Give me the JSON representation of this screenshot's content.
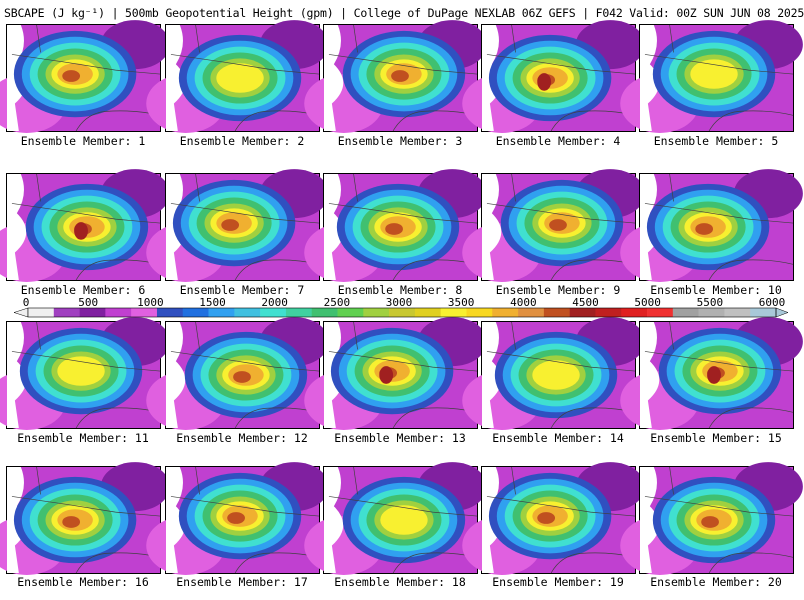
{
  "header": {
    "title": "SBCAPE (J kg⁻¹) | 500mb Geopotential Height (gpm) | College of DuPage NEXLAB 06Z GEFS | F042 Valid: 00Z SUN JUN 08 2025"
  },
  "colorbar": {
    "ticks": [
      "0",
      "500",
      "1000",
      "1500",
      "2000",
      "2500",
      "3000",
      "3500",
      "4000",
      "4500",
      "5000",
      "5500",
      "6000"
    ],
    "colors": [
      "#f0f0f0",
      "#a040c0",
      "#8020a0",
      "#c040d0",
      "#e060e0",
      "#3050c0",
      "#2070e0",
      "#30a0f0",
      "#40c0e0",
      "#40e0d0",
      "#40d0a0",
      "#40c070",
      "#60d050",
      "#a0d040",
      "#c8c830",
      "#e0d020",
      "#f8f030",
      "#f8d820",
      "#f0b030",
      "#e09040",
      "#c05020",
      "#a02020",
      "#c02020",
      "#e02020",
      "#f03030",
      "#a0a0a0",
      "#b0b0b0",
      "#c0c0c0",
      "#a8c8d8"
    ]
  },
  "members": [
    {
      "label": "Ensemble Member: 1",
      "intensity": 2
    },
    {
      "label": "Ensemble Member: 2",
      "intensity": 1
    },
    {
      "label": "Ensemble Member: 3",
      "intensity": 2
    },
    {
      "label": "Ensemble Member: 4",
      "intensity": 3
    },
    {
      "label": "Ensemble Member: 5",
      "intensity": 1
    },
    {
      "label": "Ensemble Member: 6",
      "intensity": 3
    },
    {
      "label": "Ensemble Member: 7",
      "intensity": 2
    },
    {
      "label": "Ensemble Member: 8",
      "intensity": 2
    },
    {
      "label": "Ensemble Member: 9",
      "intensity": 2
    },
    {
      "label": "Ensemble Member: 10",
      "intensity": 2
    },
    {
      "label": "Ensemble Member: 11",
      "intensity": 1
    },
    {
      "label": "Ensemble Member: 12",
      "intensity": 2
    },
    {
      "label": "Ensemble Member: 13",
      "intensity": 3
    },
    {
      "label": "Ensemble Member: 14",
      "intensity": 1
    },
    {
      "label": "Ensemble Member: 15",
      "intensity": 3
    },
    {
      "label": "Ensemble Member: 16",
      "intensity": 2
    },
    {
      "label": "Ensemble Member: 17",
      "intensity": 2
    },
    {
      "label": "Ensemble Member: 18",
      "intensity": 1
    },
    {
      "label": "Ensemble Member: 19",
      "intensity": 2
    },
    {
      "label": "Ensemble Member: 20",
      "intensity": 2
    }
  ]
}
